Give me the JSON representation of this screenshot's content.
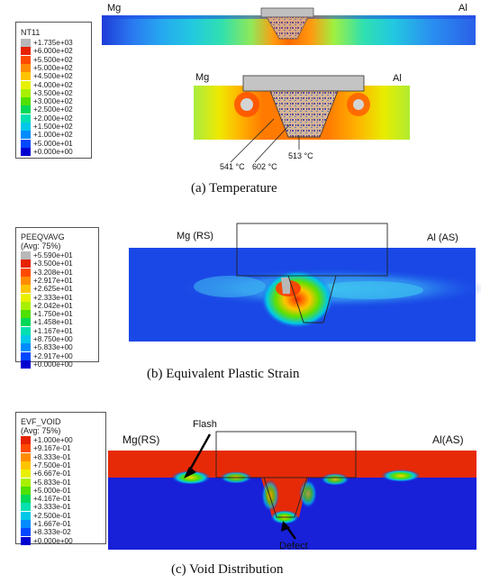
{
  "panels": {
    "a": {
      "caption": "(a)  Temperature",
      "legend_title": "NT11",
      "legend": [
        {
          "label": "+1.735e+03",
          "color": "#b8b8b8"
        },
        {
          "label": "+6.000e+02",
          "color": "#e62200"
        },
        {
          "label": "+5.500e+02",
          "color": "#ff4a00"
        },
        {
          "label": "+5.000e+02",
          "color": "#ff8c00"
        },
        {
          "label": "+4.500e+02",
          "color": "#ffc400"
        },
        {
          "label": "+4.000e+02",
          "color": "#e8f000"
        },
        {
          "label": "+3.500e+02",
          "color": "#a8f000"
        },
        {
          "label": "+3.000e+02",
          "color": "#50e000"
        },
        {
          "label": "+2.500e+02",
          "color": "#00d858"
        },
        {
          "label": "+2.000e+02",
          "color": "#00e0b0"
        },
        {
          "label": "+1.500e+02",
          "color": "#00c8e8"
        },
        {
          "label": "+1.000e+02",
          "color": "#008cff"
        },
        {
          "label": "+5.000e+01",
          "color": "#0048ff"
        },
        {
          "label": "+0.000e+00",
          "color": "#0000d0"
        }
      ],
      "top_left_label": "Mg",
      "top_right_label": "Al",
      "zoom_left_label": "Mg",
      "zoom_right_label": "Al",
      "annotations": [
        "541 °C",
        "602 °C",
        "513 °C"
      ]
    },
    "b": {
      "caption": "(b)  Equivalent Plastic Strain",
      "legend_title": "PEEQVAVG\n(Avg: 75%)",
      "legend": [
        {
          "label": "+5.590e+01",
          "color": "#b8b8b8"
        },
        {
          "label": "+3.500e+01",
          "color": "#e62200"
        },
        {
          "label": "+3.208e+01",
          "color": "#ff4a00"
        },
        {
          "label": "+2.917e+01",
          "color": "#ff8c00"
        },
        {
          "label": "+2.625e+01",
          "color": "#ffc400"
        },
        {
          "label": "+2.333e+01",
          "color": "#e8f000"
        },
        {
          "label": "+2.042e+01",
          "color": "#a8f000"
        },
        {
          "label": "+1.750e+01",
          "color": "#50e000"
        },
        {
          "label": "+1.458e+01",
          "color": "#00d858"
        },
        {
          "label": "+1.167e+01",
          "color": "#00e0b0"
        },
        {
          "label": "+8.750e+00",
          "color": "#00c8e8"
        },
        {
          "label": "+5.833e+00",
          "color": "#008cff"
        },
        {
          "label": "+2.917e+00",
          "color": "#0048ff"
        },
        {
          "label": "+0.000e+00",
          "color": "#0000d0"
        }
      ],
      "left_label": "Mg (RS)",
      "right_label": "Al (AS)"
    },
    "c": {
      "caption": "(c)  Void Distribution",
      "legend_title": "EVF_VOID\n(Avg: 75%)",
      "legend": [
        {
          "label": "+1.000e+00",
          "color": "#e62200"
        },
        {
          "label": "+9.167e-01",
          "color": "#ff4a00"
        },
        {
          "label": "+8.333e-01",
          "color": "#ff8c00"
        },
        {
          "label": "+7.500e-01",
          "color": "#ffc400"
        },
        {
          "label": "+6.667e-01",
          "color": "#e8f000"
        },
        {
          "label": "+5.833e-01",
          "color": "#a8f000"
        },
        {
          "label": "+5.000e-01",
          "color": "#50e000"
        },
        {
          "label": "+4.167e-01",
          "color": "#00d858"
        },
        {
          "label": "+3.333e-01",
          "color": "#00e0b0"
        },
        {
          "label": "+2.500e-01",
          "color": "#00c8e8"
        },
        {
          "label": "+1.667e-01",
          "color": "#008cff"
        },
        {
          "label": "+8.333e-02",
          "color": "#0048ff"
        },
        {
          "label": "+0.000e+00",
          "color": "#0000d0"
        }
      ],
      "left_label": "Mg(RS)",
      "right_label": "Al(AS)",
      "flash_label": "Flash",
      "defect_label": "Defect"
    }
  }
}
